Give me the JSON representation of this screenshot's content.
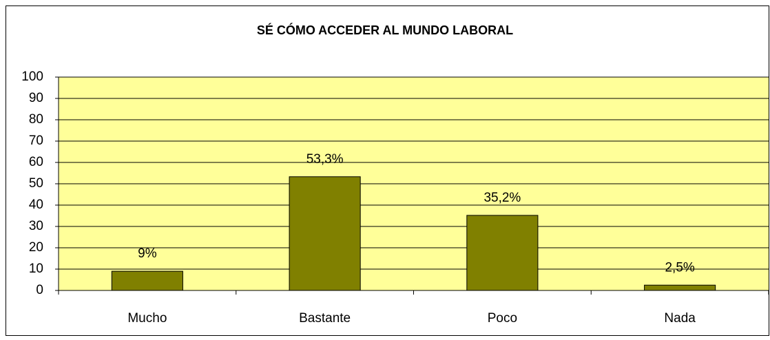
{
  "chart_data": {
    "type": "bar",
    "title": "SÉ CÓMO ACCEDER AL MUNDO LABORAL",
    "categories": [
      "Mucho",
      "Bastante",
      "Poco",
      "Nada"
    ],
    "values": [
      9,
      53.3,
      35.2,
      2.5
    ],
    "value_labels": [
      "9%",
      "53,3%",
      "35,2%",
      "2,5%"
    ],
    "color": "#808000",
    "plot_background": "#ffff99",
    "ylim": [
      0,
      100
    ],
    "yticks": [
      0,
      10,
      20,
      30,
      40,
      50,
      60,
      70,
      80,
      90,
      100
    ],
    "grid": true
  }
}
